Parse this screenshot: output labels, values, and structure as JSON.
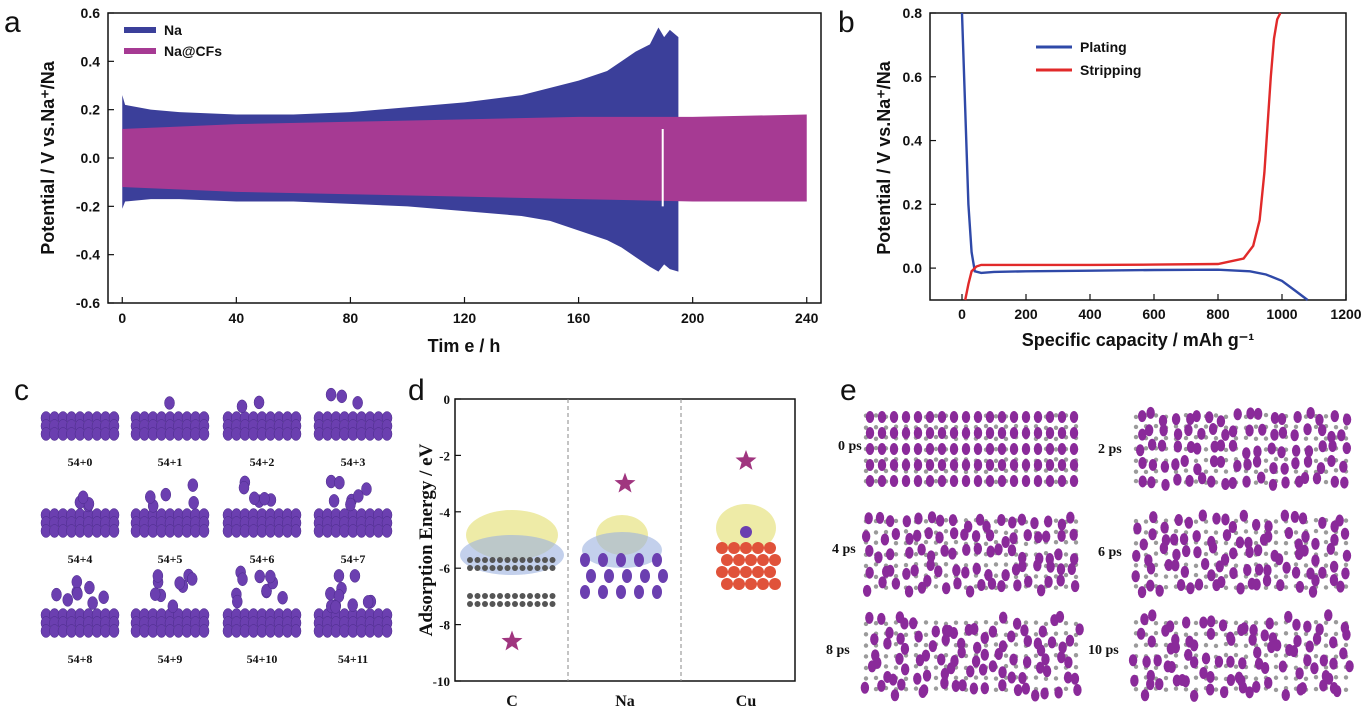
{
  "panels": {
    "a": "a",
    "b": "b",
    "c": "c",
    "d": "d",
    "e": "e"
  },
  "chart_data": [
    {
      "panel": "a",
      "type": "line",
      "xlabel": "Tim e  / h",
      "ylabel": "Potential / V vs.Na⁺/Na",
      "xlim": [
        -5,
        245
      ],
      "ylim": [
        -0.6,
        0.6
      ],
      "xticks": [
        0,
        40,
        80,
        120,
        160,
        200,
        240
      ],
      "yticks": [
        -0.6,
        -0.4,
        -0.2,
        0.0,
        0.2,
        0.4,
        0.6
      ],
      "legend_position": "top-left",
      "series": [
        {
          "name": "Na",
          "color": "#3b3f9a",
          "envelope": {
            "x": [
              0,
              1,
              10,
              20,
              40,
              60,
              80,
              100,
              120,
              140,
              150,
              160,
              170,
              175,
              180,
              185,
              188,
              190,
              192,
              195
            ],
            "upper": [
              0.26,
              0.22,
              0.2,
              0.19,
              0.18,
              0.18,
              0.19,
              0.21,
              0.23,
              0.26,
              0.29,
              0.32,
              0.36,
              0.4,
              0.44,
              0.47,
              0.54,
              0.5,
              0.53,
              0.5
            ],
            "lower": [
              -0.21,
              -0.18,
              -0.17,
              -0.17,
              -0.18,
              -0.18,
              -0.19,
              -0.2,
              -0.22,
              -0.24,
              -0.26,
              -0.3,
              -0.34,
              -0.37,
              -0.41,
              -0.45,
              -0.47,
              -0.44,
              -0.46,
              -0.47
            ]
          }
        },
        {
          "name": "Na@CFs",
          "color": "#a63a93",
          "envelope": {
            "x": [
              0,
              40,
              80,
              120,
              160,
              200,
              240
            ],
            "upper": [
              0.12,
              0.14,
              0.15,
              0.16,
              0.17,
              0.17,
              0.18
            ],
            "lower": [
              -0.12,
              -0.14,
              -0.15,
              -0.16,
              -0.17,
              -0.18,
              -0.18
            ]
          }
        }
      ]
    },
    {
      "panel": "b",
      "type": "line",
      "xlabel": "Specific capacity / mAh g⁻¹",
      "ylabel": "Potential / V vs.Na⁺/Na",
      "xlim": [
        -100,
        1200
      ],
      "ylim": [
        -0.1,
        0.8
      ],
      "xticks": [
        0,
        200,
        400,
        600,
        800,
        1000,
        1200
      ],
      "yticks": [
        0.0,
        0.2,
        0.4,
        0.6,
        0.8
      ],
      "legend_position": "top-center",
      "series": [
        {
          "name": "Plating",
          "color": "#2f49a8",
          "x": [
            0,
            10,
            20,
            30,
            40,
            60,
            100,
            200,
            400,
            600,
            800,
            900,
            950,
            1000,
            1040,
            1080
          ],
          "y": [
            0.8,
            0.5,
            0.2,
            0.05,
            -0.01,
            -0.015,
            -0.012,
            -0.01,
            -0.008,
            -0.006,
            -0.005,
            -0.01,
            -0.02,
            -0.04,
            -0.07,
            -0.1
          ]
        },
        {
          "name": "Stripping",
          "color": "#e12a2a",
          "x": [
            10,
            20,
            30,
            45,
            60,
            100,
            200,
            400,
            600,
            800,
            880,
            910,
            930,
            945,
            955,
            965,
            975,
            985,
            995
          ],
          "y": [
            -0.1,
            -0.05,
            -0.01,
            0.005,
            0.01,
            0.01,
            0.01,
            0.01,
            0.011,
            0.013,
            0.03,
            0.07,
            0.15,
            0.3,
            0.45,
            0.6,
            0.72,
            0.78,
            0.8
          ]
        }
      ]
    },
    {
      "panel": "d",
      "type": "scatter",
      "ylabel": "Adsorption Energy / eV",
      "categories": [
        "C",
        "Na",
        "Cu"
      ],
      "values": [
        -8.6,
        -3.0,
        -2.2
      ],
      "ylim": [
        -10,
        0
      ],
      "yticks": [
        0,
        -2,
        -4,
        -6,
        -8,
        -10
      ],
      "marker": "star",
      "color": "#a0357f"
    }
  ],
  "panel_c": {
    "labels": [
      "54+0",
      "54+1",
      "54+2",
      "54+3",
      "54+4",
      "54+5",
      "54+6",
      "54+7",
      "54+8",
      "54+9",
      "54+10",
      "54+11"
    ],
    "atom_color": "#6b3fb0"
  },
  "panel_e": {
    "labels": [
      "0 ps",
      "2 ps",
      "4 ps",
      "6 ps",
      "8 ps",
      "10 ps"
    ],
    "atom_color": "#8a2a9a",
    "substrate_color": "#9a9a9a"
  }
}
